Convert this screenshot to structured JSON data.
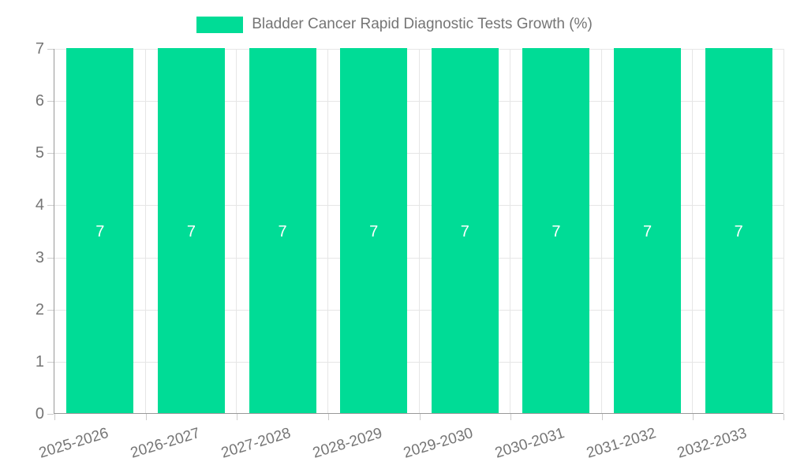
{
  "legend": {
    "label": "Bladder Cancer Rapid Diagnostic Tests Growth (%)"
  },
  "chart_data": {
    "type": "bar",
    "title": "Bladder Cancer Rapid Diagnostic Tests Growth (%)",
    "series_name": "Bladder Cancer Rapid Diagnostic Tests Growth (%)",
    "categories": [
      "2025-2026",
      "2026-2027",
      "2027-2028",
      "2028-2029",
      "2029-2030",
      "2030-2031",
      "2031-2032",
      "2032-2033"
    ],
    "values": [
      7,
      7,
      7,
      7,
      7,
      7,
      7,
      7
    ],
    "bar_labels": [
      "7",
      "7",
      "7",
      "7",
      "7",
      "7",
      "7",
      "7"
    ],
    "ylim": [
      0,
      7
    ],
    "yticks": [
      0,
      1,
      2,
      3,
      4,
      5,
      6,
      7
    ],
    "grid": true,
    "legend_position": "top",
    "xlabel": "",
    "ylabel": "",
    "colors": {
      "bar": "#00DC96",
      "bar_label": "#ffffff",
      "axis": "#999999",
      "gridline": "#e6e6e6",
      "text": "#757575",
      "tick": "#cccccc"
    }
  }
}
